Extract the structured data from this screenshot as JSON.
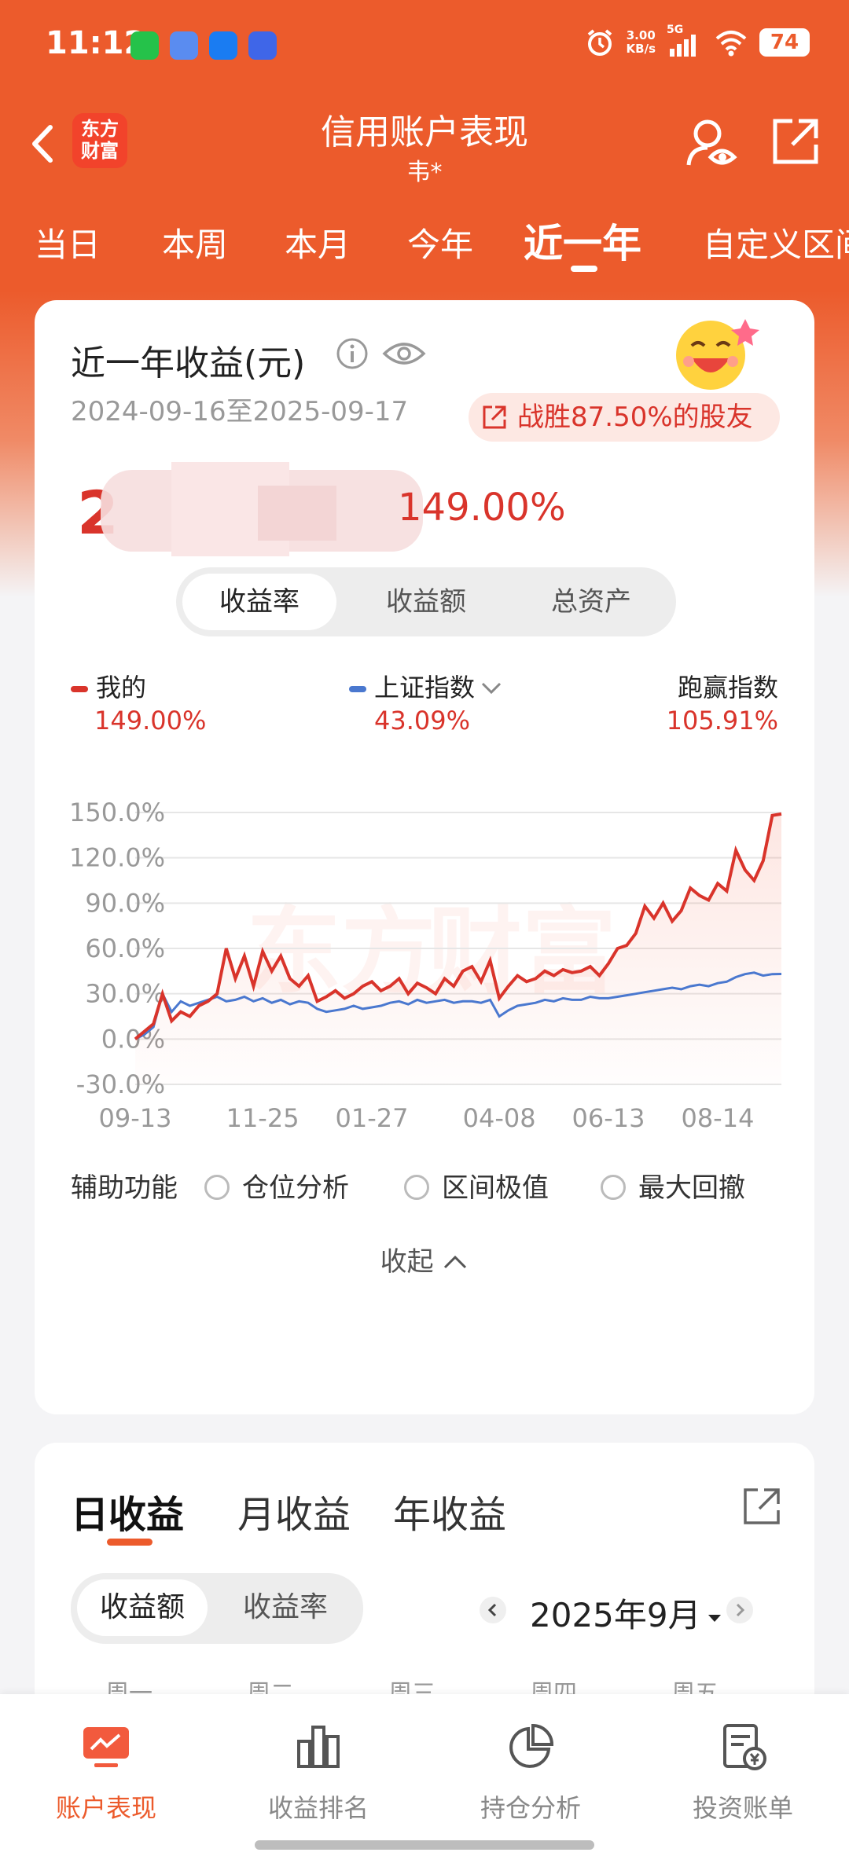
{
  "status_bar": {
    "time": "11:12",
    "net_speed_value": "3.00",
    "net_speed_unit": "KB/s",
    "network": "5G",
    "battery": "74"
  },
  "nav": {
    "title": "信用账户表现",
    "subtitle": "韦*",
    "brand_logo_line1": "东方",
    "brand_logo_line2": "财富"
  },
  "period_tabs": [
    "当日",
    "本周",
    "本月",
    "今年",
    "近一年",
    "自定义区间"
  ],
  "period_active": "近一年",
  "summary": {
    "title": "近一年收益(元)",
    "date_range": "2024-09-16至2025-09-17",
    "rank_text": "战胜87.50%的股友",
    "profit_rate": "149.00%"
  },
  "metric_tabs": [
    "收益率",
    "收益额",
    "总资产"
  ],
  "metric_active": "收益率",
  "legend": {
    "mine_label": "我的",
    "mine_value": "149.00%",
    "index_label": "上证指数",
    "index_value": "43.09%",
    "beat_label": "跑赢指数",
    "beat_value": "105.91%"
  },
  "colors": {
    "brand": "#ec5b2c",
    "mine_line": "#d9342b",
    "index_line": "#4a78cf"
  },
  "chart_data": {
    "type": "line",
    "y_ticks": [
      "150.0%",
      "120.0%",
      "90.0%",
      "60.0%",
      "30.0%",
      "0.0%",
      "-30.0%"
    ],
    "ylim": [
      -30,
      150
    ],
    "x_ticks": [
      "09-13",
      "11-25",
      "01-27",
      "04-08",
      "06-13",
      "08-14"
    ],
    "x": [
      "09-13",
      "09-18",
      "09-24",
      "09-27",
      "10-02",
      "10-08",
      "10-12",
      "10-17",
      "10-22",
      "10-27",
      "11-02",
      "11-08",
      "11-14",
      "11-20",
      "11-25",
      "12-01",
      "12-07",
      "12-12",
      "12-17",
      "12-22",
      "12-27",
      "01-01",
      "01-06",
      "01-12",
      "01-18",
      "01-22",
      "01-27",
      "02-03",
      "02-09",
      "02-14",
      "02-19",
      "02-24",
      "03-01",
      "03-06",
      "03-12",
      "03-17",
      "03-22",
      "03-27",
      "04-01",
      "04-04",
      "04-08",
      "04-14",
      "04-19",
      "04-24",
      "04-29",
      "05-05",
      "05-11",
      "05-16",
      "05-22",
      "05-27",
      "06-01",
      "06-07",
      "06-13",
      "06-18",
      "06-23",
      "06-28",
      "07-03",
      "07-08",
      "07-13",
      "07-18",
      "07-23",
      "07-28",
      "08-02",
      "08-07",
      "08-14",
      "08-19",
      "08-24",
      "08-29",
      "09-03",
      "09-08",
      "09-12",
      "09-17"
    ],
    "series": [
      {
        "name": "我的",
        "values": [
          0,
          5,
          10,
          30,
          12,
          18,
          15,
          22,
          25,
          30,
          60,
          40,
          55,
          35,
          58,
          45,
          55,
          40,
          35,
          42,
          25,
          28,
          32,
          27,
          30,
          35,
          38,
          32,
          35,
          40,
          30,
          37,
          34,
          30,
          40,
          35,
          45,
          48,
          38,
          52,
          27,
          35,
          42,
          38,
          40,
          45,
          42,
          46,
          44,
          45,
          48,
          42,
          50,
          60,
          62,
          70,
          88,
          80,
          90,
          78,
          85,
          100,
          95,
          92,
          103,
          98,
          125,
          112,
          105,
          118,
          148,
          149
        ]
      },
      {
        "name": "上证指数",
        "values": [
          0,
          3,
          8,
          30,
          18,
          25,
          22,
          24,
          26,
          28,
          25,
          26,
          28,
          25,
          27,
          24,
          26,
          23,
          25,
          24,
          20,
          18,
          19,
          20,
          22,
          20,
          21,
          22,
          24,
          25,
          23,
          26,
          24,
          25,
          26,
          24,
          25,
          25,
          24,
          26,
          15,
          19,
          22,
          23,
          24,
          26,
          25,
          27,
          26,
          26,
          28,
          27,
          27,
          28,
          29,
          30,
          31,
          32,
          33,
          34,
          33,
          35,
          36,
          35,
          37,
          38,
          41,
          43,
          44,
          42,
          43,
          43.09
        ]
      }
    ]
  },
  "aux": {
    "label": "辅助功能",
    "options": [
      "仓位分析",
      "区间极值",
      "最大回撤"
    ],
    "collapse": "收起"
  },
  "revenue": {
    "tabs": [
      "日收益",
      "月收益",
      "年收益"
    ],
    "active": "日收益",
    "mode_tabs": [
      "收益额",
      "收益率"
    ],
    "mode_active": "收益额",
    "month": "2025年9月",
    "weekdays": [
      "周一",
      "周二",
      "周三",
      "周四",
      "周五"
    ]
  },
  "bottom_nav": [
    {
      "label": "账户表现",
      "icon": "chart-trend-icon",
      "active": true
    },
    {
      "label": "收益排名",
      "icon": "bar-ranking-icon",
      "active": false
    },
    {
      "label": "持仓分析",
      "icon": "pie-chart-icon",
      "active": false
    },
    {
      "label": "投资账单",
      "icon": "bill-icon",
      "active": false
    }
  ]
}
